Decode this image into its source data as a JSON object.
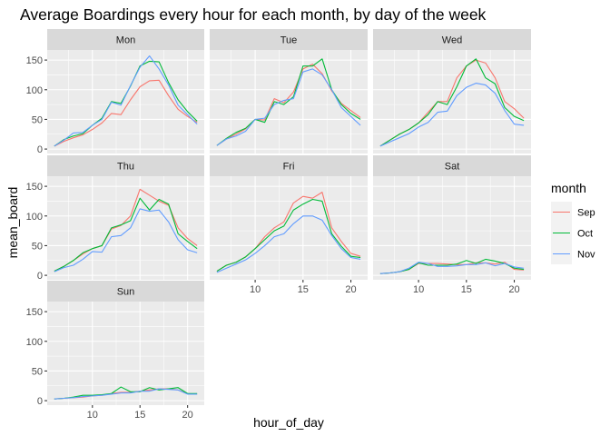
{
  "chart_data": {
    "type": "line",
    "title": "Average Boardings every hour for each month, by day of the week",
    "xlabel": "hour_of_day",
    "ylabel": "mean_board",
    "xlim": [
      5.25,
      21.75
    ],
    "ylim": [
      -7.5,
      167
    ],
    "x_ticks": [
      10,
      15,
      20
    ],
    "y_ticks": [
      0,
      50,
      100,
      150
    ],
    "grid": true,
    "legend": {
      "title": "month",
      "position": "right",
      "items": [
        {
          "name": "Sep",
          "color": "#F8766D"
        },
        {
          "name": "Oct",
          "color": "#00BA38"
        },
        {
          "name": "Nov",
          "color": "#619CFF"
        }
      ]
    },
    "x": [
      6,
      7,
      8,
      9,
      10,
      11,
      12,
      13,
      14,
      15,
      16,
      17,
      18,
      19,
      20,
      21
    ],
    "panels": [
      {
        "label": "Mon",
        "series": [
          {
            "name": "Sep",
            "values": [
              5,
              13,
              19,
              24,
              33,
              44,
              60,
              58,
              83,
              105,
              115,
              116,
              90,
              67,
              55,
              45
            ]
          },
          {
            "name": "Oct",
            "values": [
              5,
              16,
              22,
              26,
              40,
              52,
              80,
              77,
              106,
              140,
              148,
              147,
              112,
              83,
              63,
              47
            ]
          },
          {
            "name": "Nov",
            "values": [
              5,
              15,
              27,
              28,
              40,
              50,
              79,
              74,
              107,
              138,
              157,
              135,
              108,
              74,
              58,
              42
            ]
          }
        ]
      },
      {
        "label": "Tue",
        "series": [
          {
            "name": "Sep",
            "values": [
              6,
              17,
              25,
              34,
              50,
              49,
              85,
              78,
              96,
              135,
              143,
              127,
              98,
              77,
              65,
              53
            ]
          },
          {
            "name": "Oct",
            "values": [
              6,
              18,
              28,
              35,
              50,
              45,
              80,
              75,
              88,
              140,
              140,
              152,
              100,
              75,
              60,
              50
            ]
          },
          {
            "name": "Nov",
            "values": [
              6,
              17,
              22,
              30,
              50,
              52,
              75,
              82,
              85,
              130,
              135,
              125,
              100,
              70,
              55,
              40
            ]
          }
        ]
      },
      {
        "label": "Wed",
        "series": [
          {
            "name": "Sep",
            "values": [
              5,
              15,
              25,
              33,
              44,
              62,
              80,
              80,
              120,
              140,
              150,
              145,
              120,
              80,
              68,
              52
            ]
          },
          {
            "name": "Oct",
            "values": [
              5,
              15,
              25,
              33,
              44,
              58,
              80,
              75,
              105,
              140,
              152,
              120,
              110,
              70,
              55,
              48
            ]
          },
          {
            "name": "Nov",
            "values": [
              5,
              12,
              19,
              26,
              37,
              45,
              62,
              64,
              90,
              104,
              111,
              108,
              94,
              65,
              42,
              40
            ]
          }
        ]
      },
      {
        "label": "Thu",
        "series": [
          {
            "name": "Sep",
            "values": [
              7,
              15,
              25,
              36,
              45,
              50,
              78,
              84,
              100,
              145,
              135,
              125,
              118,
              80,
              62,
              50
            ]
          },
          {
            "name": "Oct",
            "values": [
              7,
              15,
              25,
              38,
              45,
              50,
              80,
              85,
              92,
              130,
              110,
              128,
              120,
              70,
              57,
              45
            ]
          },
          {
            "name": "Nov",
            "values": [
              6,
              13,
              17,
              27,
              40,
              39,
              65,
              67,
              80,
              112,
              108,
              110,
              90,
              60,
              43,
              38
            ]
          }
        ]
      },
      {
        "label": "Fri",
        "series": [
          {
            "name": "Sep",
            "values": [
              7,
              17,
              22,
              31,
              45,
              65,
              80,
              90,
              122,
              133,
              130,
              140,
              80,
              57,
              37,
              32
            ]
          },
          {
            "name": "Oct",
            "values": [
              7,
              17,
              22,
              31,
              45,
              60,
              75,
              83,
              110,
              120,
              128,
              125,
              70,
              49,
              32,
              30
            ]
          },
          {
            "name": "Nov",
            "values": [
              5,
              12,
              19,
              26,
              37,
              50,
              65,
              70,
              87,
              100,
              100,
              93,
              67,
              45,
              30,
              27
            ]
          }
        ]
      },
      {
        "label": "Sat",
        "series": [
          {
            "name": "Sat-Sep",
            "legend": "Sep",
            "values": [
              3,
              4,
              6,
              10,
              20,
              20,
              20,
              19,
              18,
              18,
              21,
              21,
              19,
              22,
              10,
              9
            ]
          },
          {
            "name": "Sat-Oct",
            "legend": "Oct",
            "values": [
              3,
              4,
              6,
              10,
              21,
              17,
              17,
              17,
              19,
              25,
              20,
              27,
              24,
              20,
              12,
              10
            ]
          },
          {
            "name": "Sat-Nov",
            "legend": "Nov",
            "values": [
              3,
              4,
              6,
              12,
              22,
              20,
              15,
              15,
              16,
              18,
              18,
              21,
              16,
              20,
              14,
              12
            ]
          }
        ]
      },
      {
        "label": "Sun",
        "series": [
          {
            "name": "Sep",
            "values": [
              3,
              4,
              5,
              6,
              8,
              9,
              12,
              14,
              14,
              16,
              18,
              20,
              20,
              18,
              12,
              11
            ]
          },
          {
            "name": "Oct",
            "values": [
              3,
              4,
              6,
              9,
              9,
              10,
              12,
              23,
              15,
              15,
              22,
              18,
              20,
              22,
              12,
              12
            ]
          },
          {
            "name": "Nov",
            "values": [
              3,
              4,
              5,
              7,
              8,
              9,
              11,
              13,
              13,
              16,
              16,
              20,
              19,
              18,
              11,
              11
            ]
          }
        ]
      }
    ]
  }
}
